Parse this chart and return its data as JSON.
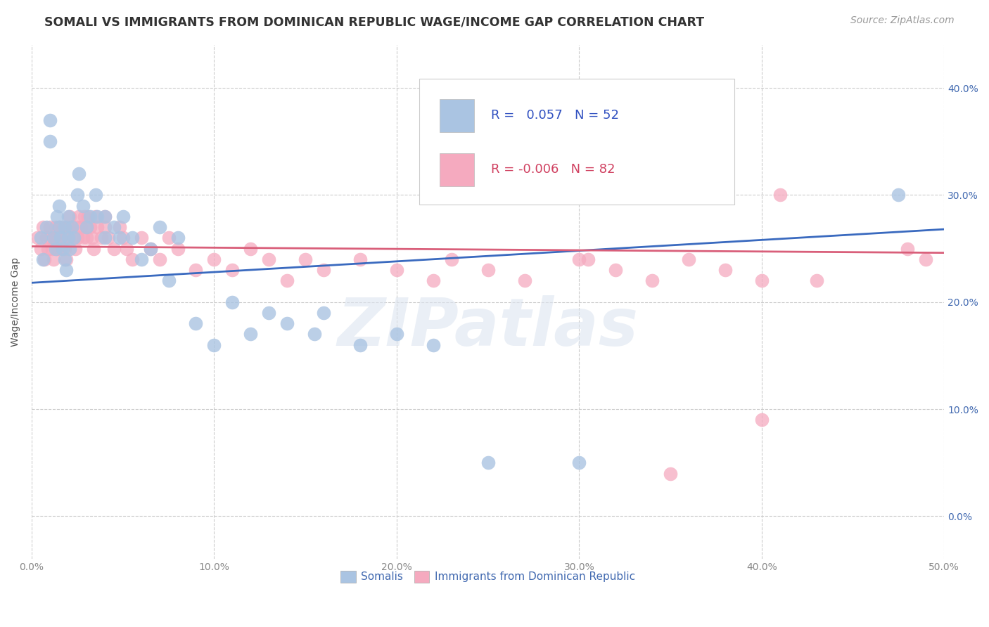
{
  "title": "SOMALI VS IMMIGRANTS FROM DOMINICAN REPUBLIC WAGE/INCOME GAP CORRELATION CHART",
  "source": "Source: ZipAtlas.com",
  "ylabel": "Wage/Income Gap",
  "xlim": [
    0.0,
    0.5
  ],
  "ylim": [
    -0.04,
    0.44
  ],
  "legend_labels": [
    "Somalis",
    "Immigrants from Dominican Republic"
  ],
  "R_somali": "0.057",
  "N_somali": "52",
  "R_dr": "-0.006",
  "N_dr": "82",
  "somali_color": "#aac4e2",
  "dr_color": "#f5aabf",
  "somali_line_color": "#3a6abf",
  "dr_line_color": "#d95f7a",
  "background_color": "#ffffff",
  "grid_color": "#cccccc",
  "watermark": "ZIPatlas",
  "watermark_color": "#dde5f0",
  "title_fontsize": 12.5,
  "source_fontsize": 10,
  "axis_label_fontsize": 10,
  "tick_fontsize": 10,
  "somali_x": [
    0.005,
    0.006,
    0.008,
    0.01,
    0.01,
    0.012,
    0.013,
    0.014,
    0.015,
    0.015,
    0.016,
    0.017,
    0.018,
    0.018,
    0.019,
    0.02,
    0.02,
    0.021,
    0.022,
    0.023,
    0.025,
    0.026,
    0.028,
    0.03,
    0.032,
    0.035,
    0.036,
    0.04,
    0.04,
    0.045,
    0.048,
    0.05,
    0.055,
    0.06,
    0.065,
    0.07,
    0.075,
    0.08,
    0.09,
    0.1,
    0.11,
    0.12,
    0.13,
    0.14,
    0.155,
    0.16,
    0.18,
    0.2,
    0.22,
    0.25,
    0.3,
    0.475
  ],
  "somali_y": [
    0.26,
    0.24,
    0.27,
    0.35,
    0.37,
    0.26,
    0.25,
    0.28,
    0.27,
    0.29,
    0.26,
    0.25,
    0.27,
    0.24,
    0.23,
    0.26,
    0.28,
    0.25,
    0.27,
    0.26,
    0.3,
    0.32,
    0.29,
    0.27,
    0.28,
    0.3,
    0.28,
    0.26,
    0.28,
    0.27,
    0.26,
    0.28,
    0.26,
    0.24,
    0.25,
    0.27,
    0.22,
    0.26,
    0.18,
    0.16,
    0.2,
    0.17,
    0.19,
    0.18,
    0.17,
    0.19,
    0.16,
    0.17,
    0.16,
    0.05,
    0.05,
    0.3
  ],
  "dr_x": [
    0.003,
    0.005,
    0.006,
    0.007,
    0.008,
    0.009,
    0.01,
    0.01,
    0.011,
    0.012,
    0.013,
    0.013,
    0.014,
    0.015,
    0.015,
    0.016,
    0.017,
    0.018,
    0.018,
    0.019,
    0.02,
    0.02,
    0.021,
    0.022,
    0.023,
    0.024,
    0.025,
    0.025,
    0.026,
    0.027,
    0.028,
    0.029,
    0.03,
    0.03,
    0.031,
    0.032,
    0.033,
    0.034,
    0.035,
    0.036,
    0.038,
    0.04,
    0.04,
    0.042,
    0.045,
    0.048,
    0.05,
    0.052,
    0.055,
    0.06,
    0.065,
    0.07,
    0.075,
    0.08,
    0.09,
    0.1,
    0.11,
    0.12,
    0.13,
    0.14,
    0.15,
    0.16,
    0.18,
    0.2,
    0.22,
    0.23,
    0.25,
    0.27,
    0.3,
    0.32,
    0.34,
    0.36,
    0.38,
    0.4,
    0.38,
    0.41,
    0.43,
    0.4,
    0.48,
    0.49,
    0.305,
    0.35
  ],
  "dr_y": [
    0.26,
    0.25,
    0.27,
    0.24,
    0.26,
    0.25,
    0.27,
    0.26,
    0.25,
    0.24,
    0.27,
    0.26,
    0.25,
    0.27,
    0.26,
    0.25,
    0.27,
    0.26,
    0.25,
    0.24,
    0.27,
    0.26,
    0.28,
    0.27,
    0.26,
    0.25,
    0.27,
    0.26,
    0.28,
    0.27,
    0.26,
    0.28,
    0.27,
    0.26,
    0.28,
    0.27,
    0.26,
    0.25,
    0.28,
    0.27,
    0.26,
    0.28,
    0.27,
    0.26,
    0.25,
    0.27,
    0.26,
    0.25,
    0.24,
    0.26,
    0.25,
    0.24,
    0.26,
    0.25,
    0.23,
    0.24,
    0.23,
    0.25,
    0.24,
    0.22,
    0.24,
    0.23,
    0.24,
    0.23,
    0.22,
    0.24,
    0.23,
    0.22,
    0.24,
    0.23,
    0.22,
    0.24,
    0.23,
    0.22,
    0.3,
    0.3,
    0.22,
    0.09,
    0.25,
    0.24,
    0.24,
    0.04
  ]
}
